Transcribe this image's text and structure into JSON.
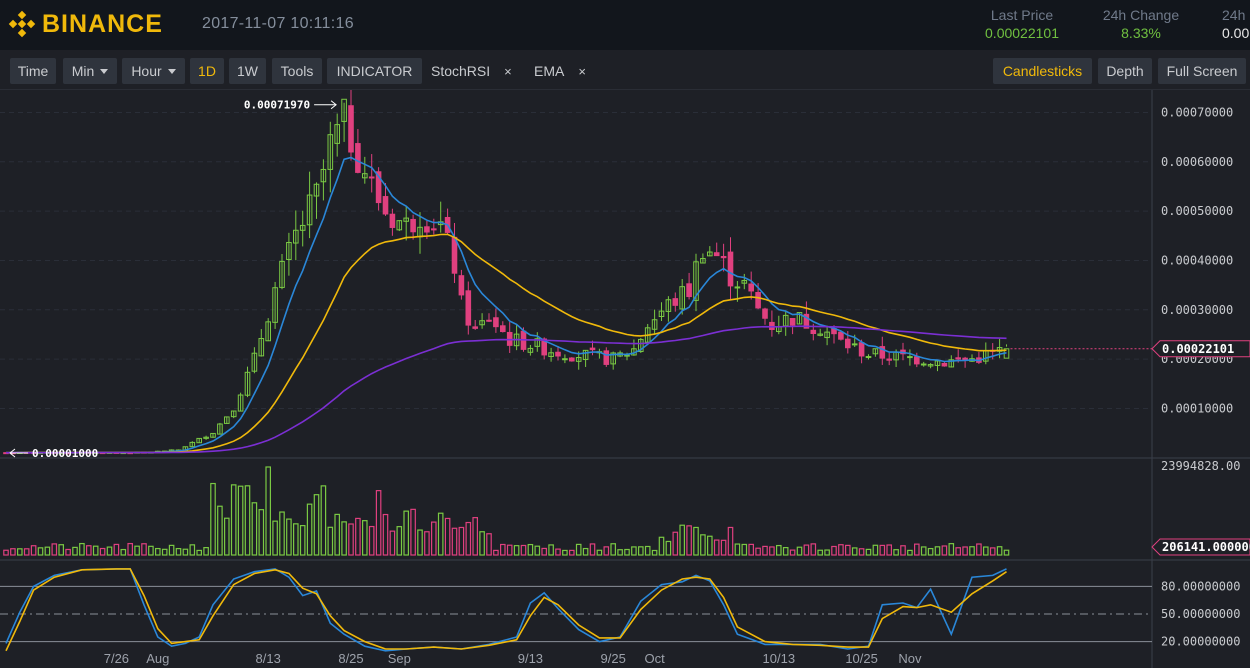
{
  "header": {
    "brand": "BINANCE",
    "datetime": "2017-11-07 10:11:16",
    "last_price_label": "Last Price",
    "last_price": "0.00022101",
    "change_label": "24h Change",
    "change": "8.33%",
    "partial_label": "24h",
    "partial_value": "0.00"
  },
  "toolbar": {
    "time": "Time",
    "min": "Min",
    "hour": "Hour",
    "d1": "1D",
    "w1": "1W",
    "tools": "Tools",
    "indicator": "INDICATOR",
    "stochrsi": "StochRSI",
    "ema": "EMA",
    "remove_glyph": "×",
    "candlesticks": "Candlesticks",
    "depth": "Depth",
    "fullscreen": "Full Screen"
  },
  "colors": {
    "up": "#7ac943",
    "down": "#e0407f",
    "ema_fast": "#2a87d8",
    "ema_mid": "#f0b90b",
    "ema_slow": "#7b2fd3",
    "stoch_k": "#2a87d8",
    "stoch_d": "#f0b90b"
  },
  "chart_data": {
    "type": "candlestick",
    "price_axis": {
      "ticks": [
        "0.00070000",
        "0.00060000",
        "0.00050000",
        "0.00040000",
        "0.00030000",
        "0.00020000",
        "0.00010000"
      ],
      "range": [
        -3.3e-07,
        0.00072927
      ]
    },
    "volume_axis": {
      "max_label": "23994828.00",
      "max": 23994828
    },
    "stoch_axis": {
      "ticks": [
        "80.00000000",
        "50.00000000",
        "20.00000000"
      ]
    },
    "date_labels": [
      {
        "label": "7/26",
        "i": 16
      },
      {
        "label": "Aug",
        "i": 22
      },
      {
        "label": "8/13",
        "i": 38
      },
      {
        "label": "8/25",
        "i": 50
      },
      {
        "label": "Sep",
        "i": 57
      },
      {
        "label": "9/13",
        "i": 76
      },
      {
        "label": "9/25",
        "i": 88
      },
      {
        "label": "Oct",
        "i": 94
      },
      {
        "label": "10/13",
        "i": 112
      },
      {
        "label": "10/25",
        "i": 124
      },
      {
        "label": "Nov",
        "i": 131
      }
    ],
    "high_annotation": "0.00071970",
    "low_annotation": "0.00001000",
    "current_price_label": "0.00022101",
    "current_volume_label": "206141.000000",
    "stoch_k": [
      [
        0,
        18
      ],
      [
        2,
        52
      ],
      [
        4,
        80
      ],
      [
        7,
        92
      ],
      [
        11,
        98
      ],
      [
        16,
        99
      ],
      [
        18,
        99
      ],
      [
        20,
        60
      ],
      [
        22,
        25
      ],
      [
        24,
        15
      ],
      [
        26,
        18
      ],
      [
        28,
        25
      ],
      [
        30,
        60
      ],
      [
        33,
        88
      ],
      [
        36,
        96
      ],
      [
        39,
        99
      ],
      [
        41,
        90
      ],
      [
        43,
        70
      ],
      [
        45,
        75
      ],
      [
        47,
        40
      ],
      [
        49,
        28
      ],
      [
        52,
        15
      ],
      [
        55,
        10
      ],
      [
        58,
        12
      ],
      [
        62,
        14
      ],
      [
        66,
        12
      ],
      [
        70,
        17
      ],
      [
        74,
        25
      ],
      [
        76,
        62
      ],
      [
        78,
        73
      ],
      [
        80,
        56
      ],
      [
        83,
        33
      ],
      [
        86,
        20
      ],
      [
        89,
        25
      ],
      [
        92,
        64
      ],
      [
        95,
        82
      ],
      [
        98,
        85
      ],
      [
        100,
        92
      ],
      [
        102,
        86
      ],
      [
        104,
        60
      ],
      [
        106,
        28
      ],
      [
        110,
        17
      ],
      [
        114,
        17
      ],
      [
        118,
        17
      ],
      [
        122,
        12
      ],
      [
        125,
        15
      ],
      [
        127,
        60
      ],
      [
        130,
        62
      ],
      [
        132,
        57
      ],
      [
        134,
        77
      ],
      [
        137,
        28
      ],
      [
        140,
        90
      ],
      [
        143,
        92
      ],
      [
        145,
        99
      ]
    ],
    "stoch_d": [
      [
        0,
        10
      ],
      [
        2,
        42
      ],
      [
        4,
        76
      ],
      [
        7,
        90
      ],
      [
        11,
        98
      ],
      [
        16,
        99
      ],
      [
        18,
        99
      ],
      [
        20,
        70
      ],
      [
        22,
        34
      ],
      [
        24,
        18
      ],
      [
        26,
        20
      ],
      [
        28,
        22
      ],
      [
        30,
        48
      ],
      [
        33,
        82
      ],
      [
        36,
        94
      ],
      [
        39,
        98
      ],
      [
        41,
        94
      ],
      [
        43,
        78
      ],
      [
        45,
        72
      ],
      [
        47,
        48
      ],
      [
        49,
        32
      ],
      [
        52,
        20
      ],
      [
        55,
        12
      ],
      [
        58,
        12
      ],
      [
        62,
        14
      ],
      [
        66,
        12
      ],
      [
        70,
        16
      ],
      [
        74,
        22
      ],
      [
        76,
        48
      ],
      [
        78,
        68
      ],
      [
        80,
        60
      ],
      [
        83,
        38
      ],
      [
        86,
        24
      ],
      [
        89,
        24
      ],
      [
        92,
        55
      ],
      [
        95,
        76
      ],
      [
        98,
        88
      ],
      [
        100,
        90
      ],
      [
        102,
        88
      ],
      [
        104,
        68
      ],
      [
        106,
        36
      ],
      [
        110,
        20
      ],
      [
        114,
        17
      ],
      [
        118,
        16
      ],
      [
        122,
        14
      ],
      [
        125,
        14
      ],
      [
        127,
        45
      ],
      [
        130,
        58
      ],
      [
        132,
        57
      ],
      [
        134,
        60
      ],
      [
        137,
        52
      ],
      [
        140,
        72
      ],
      [
        143,
        86
      ],
      [
        145,
        96
      ]
    ]
  }
}
